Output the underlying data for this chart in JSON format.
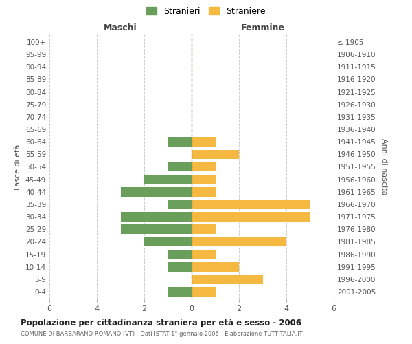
{
  "age_groups": [
    "0-4",
    "5-9",
    "10-14",
    "15-19",
    "20-24",
    "25-29",
    "30-34",
    "35-39",
    "40-44",
    "45-49",
    "50-54",
    "55-59",
    "60-64",
    "65-69",
    "70-74",
    "75-79",
    "80-84",
    "85-89",
    "90-94",
    "95-99",
    "100+"
  ],
  "birth_years": [
    "2001-2005",
    "1996-2000",
    "1991-1995",
    "1986-1990",
    "1981-1985",
    "1976-1980",
    "1971-1975",
    "1966-1970",
    "1961-1965",
    "1956-1960",
    "1951-1955",
    "1946-1950",
    "1941-1945",
    "1936-1940",
    "1931-1935",
    "1926-1930",
    "1921-1925",
    "1916-1920",
    "1911-1915",
    "1906-1910",
    "≤ 1905"
  ],
  "maschi": [
    1,
    0,
    1,
    1,
    2,
    3,
    3,
    1,
    3,
    2,
    1,
    0,
    1,
    0,
    0,
    0,
    0,
    0,
    0,
    0,
    0
  ],
  "femmine": [
    1,
    3,
    2,
    1,
    4,
    1,
    5,
    5,
    1,
    1,
    1,
    2,
    1,
    0,
    0,
    0,
    0,
    0,
    0,
    0,
    0
  ],
  "maschi_color": "#6a9e5b",
  "femmine_color": "#f5b942",
  "title": "Popolazione per cittadinanza straniera per età e sesso - 2006",
  "subtitle": "COMUNE DI BARBARANO ROMANO (VT) - Dati ISTAT 1° gennaio 2006 - Elaborazione TUTTITALIA.IT",
  "xlabel_left": "Maschi",
  "xlabel_right": "Femmine",
  "ylabel_left": "Fasce di età",
  "ylabel_right": "Anni di nascita",
  "legend_maschi": "Stranieri",
  "legend_femmine": "Straniere",
  "xlim": 6,
  "background_color": "#ffffff",
  "grid_color": "#cccccc"
}
